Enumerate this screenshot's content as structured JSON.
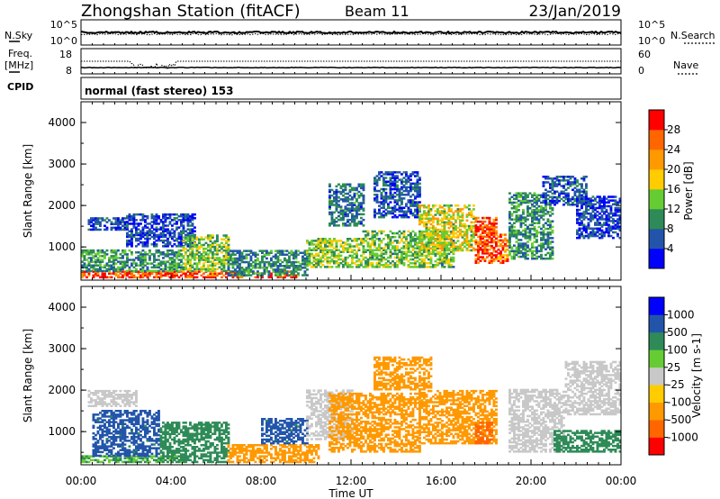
{
  "header": {
    "title": "Zhongshan Station (fitACF)",
    "beam": "Beam 11",
    "date": "23/Jan/2019"
  },
  "strip": {
    "nsky_label": "N.Sky",
    "nsearch_label": "N.Search",
    "nsky_ticks": [
      "10^5",
      "10^0"
    ],
    "nsearch_ticks": [
      "10^5",
      "10^0"
    ],
    "freq_label_1": "Freq.",
    "freq_label_2": "[MHz]",
    "freq_ticks": [
      "18",
      "8"
    ],
    "nave_label": "Nave",
    "nave_ticks": [
      "60",
      "0"
    ],
    "cpid_label": "CPID",
    "cpid_value": "normal (fast stereo) 153"
  },
  "colors": {
    "power": [
      "#0000ff",
      "#2255aa",
      "#2e8b57",
      "#66cc33",
      "#ffcc00",
      "#ff9900",
      "#ff6600",
      "#ff0000"
    ],
    "velocity": [
      "#ff0000",
      "#ff6600",
      "#ff9900",
      "#ffcc00",
      "#c8c8c8",
      "#66cc33",
      "#2e8b57",
      "#2255aa",
      "#0000ff"
    ]
  },
  "chart_data": [
    {
      "type": "heatmap",
      "name": "power",
      "ylabel": "Slant Range [km]",
      "yticks": [
        "1000",
        "2000",
        "3000",
        "4000"
      ],
      "ylim": [
        200,
        4500
      ],
      "xlim": [
        0,
        24
      ],
      "colorbar_label": "Power [dB]",
      "colorbar_ticks": [
        "4",
        "8",
        "12",
        "16",
        "20",
        "24",
        "28"
      ],
      "clim": [
        0,
        32
      ],
      "regions": [
        {
          "t": [
            0.0,
            9.5
          ],
          "r": [
            250,
            400
          ],
          "v": 28
        },
        {
          "t": [
            0.0,
            4.5
          ],
          "r": [
            400,
            900
          ],
          "v": 10
        },
        {
          "t": [
            0.3,
            2.0
          ],
          "r": [
            1400,
            1700
          ],
          "v": 6
        },
        {
          "t": [
            2.0,
            5.0
          ],
          "r": [
            1000,
            1800
          ],
          "v": 5
        },
        {
          "t": [
            4.5,
            6.5
          ],
          "r": [
            400,
            1300
          ],
          "v": 14
        },
        {
          "t": [
            6.5,
            10.0
          ],
          "r": [
            300,
            900
          ],
          "v": 9
        },
        {
          "t": [
            10.0,
            12.5
          ],
          "r": [
            500,
            1200
          ],
          "v": 14
        },
        {
          "t": [
            11.0,
            12.5
          ],
          "r": [
            1500,
            2500
          ],
          "v": 8
        },
        {
          "t": [
            12.5,
            16.5
          ],
          "r": [
            500,
            1400
          ],
          "v": 13
        },
        {
          "t": [
            13.0,
            15.0
          ],
          "r": [
            1700,
            2800
          ],
          "v": 6
        },
        {
          "t": [
            15.0,
            17.5
          ],
          "r": [
            900,
            2000
          ],
          "v": 17
        },
        {
          "t": [
            17.5,
            18.5
          ],
          "r": [
            600,
            1700
          ],
          "v": 28
        },
        {
          "t": [
            18.5,
            19.0
          ],
          "r": [
            600,
            1300
          ],
          "v": 24
        },
        {
          "t": [
            19.0,
            21.0
          ],
          "r": [
            700,
            2300
          ],
          "v": 10
        },
        {
          "t": [
            20.5,
            22.5
          ],
          "r": [
            2000,
            2700
          ],
          "v": 6
        },
        {
          "t": [
            22.0,
            24.0
          ],
          "r": [
            1200,
            2200
          ],
          "v": 5
        }
      ]
    },
    {
      "type": "heatmap",
      "name": "velocity",
      "ylabel": "Slant Range [km]",
      "yticks": [
        "1000",
        "2000",
        "3000",
        "4000"
      ],
      "ylim": [
        200,
        4500
      ],
      "xlim": [
        0,
        24
      ],
      "xlabel": "Time UT",
      "xticks": [
        "00:00",
        "04:00",
        "08:00",
        "12:00",
        "16:00",
        "20:00",
        "00:00"
      ],
      "colorbar_label": "Velocity [m s-1]",
      "colorbar_ticks": [
        "1000",
        "500",
        "100",
        "25",
        "-25",
        "-100",
        "-500",
        "-1000"
      ],
      "regions": [
        {
          "t": [
            0.0,
            4.5
          ],
          "r": [
            250,
            400
          ],
          "v": 100
        },
        {
          "t": [
            0.5,
            3.5
          ],
          "r": [
            400,
            1500
          ],
          "v": 600
        },
        {
          "t": [
            0.3,
            2.5
          ],
          "r": [
            1600,
            2000
          ],
          "v": 0
        },
        {
          "t": [
            3.5,
            6.5
          ],
          "r": [
            250,
            1200
          ],
          "v": 200
        },
        {
          "t": [
            6.5,
            10.5
          ],
          "r": [
            250,
            700
          ],
          "v": -300
        },
        {
          "t": [
            8.0,
            10.0
          ],
          "r": [
            700,
            1300
          ],
          "v": 600
        },
        {
          "t": [
            10.0,
            12.0
          ],
          "r": [
            800,
            2000
          ],
          "v": 0
        },
        {
          "t": [
            11.0,
            15.0
          ],
          "r": [
            500,
            1900
          ],
          "v": -300
        },
        {
          "t": [
            13.0,
            15.5
          ],
          "r": [
            2000,
            2800
          ],
          "v": -150
        },
        {
          "t": [
            15.0,
            18.5
          ],
          "r": [
            700,
            2000
          ],
          "v": -400
        },
        {
          "t": [
            17.5,
            18.3
          ],
          "r": [
            700,
            1200
          ],
          "v": -800
        },
        {
          "t": [
            19.0,
            21.5
          ],
          "r": [
            500,
            2000
          ],
          "v": 0
        },
        {
          "t": [
            21.0,
            24.0
          ],
          "r": [
            500,
            1000
          ],
          "v": 200
        },
        {
          "t": [
            21.5,
            24.0
          ],
          "r": [
            1400,
            2700
          ],
          "v": 0
        }
      ]
    }
  ]
}
